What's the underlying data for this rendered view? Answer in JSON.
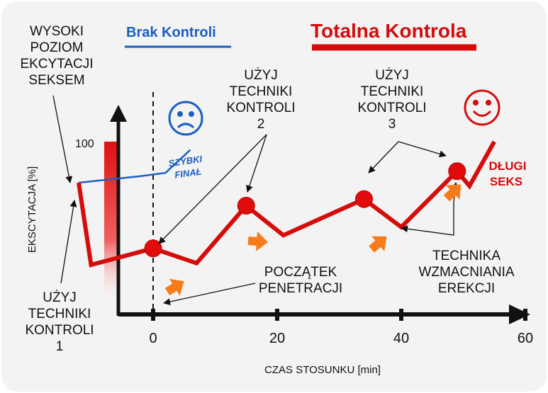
{
  "legend": {
    "brak_kontroli": "Brak Kontroli",
    "totalna_kontrola": "Totalna Kontrola",
    "blue_color": "#1a5fc4",
    "red_color": "#d40c0c"
  },
  "labels": {
    "top_left": [
      "WYSOKI",
      "POZIOM",
      "EKCYTACJI",
      "SEKSEM"
    ],
    "technique_1": [
      "UŻYJ",
      "TECHNIKI",
      "KONTROLI",
      "1"
    ],
    "technique_2": [
      "UŻYJ",
      "TECHNIKI",
      "KONTROLI",
      "2"
    ],
    "technique_3": [
      "UŻYJ",
      "TECHNIKI",
      "KONTROLI",
      "3"
    ],
    "penetration": [
      "POCZĄTEK",
      "PENETRACJI"
    ],
    "erection": [
      "TECHNIKA",
      "WZMACNIANIA",
      "EREKCJI"
    ],
    "szybki_final": [
      "SZYBKI",
      "FINAŁ"
    ],
    "dlugi_seks": [
      "DŁUGI",
      "SEKS"
    ]
  },
  "icons": {
    "sad": "sad-face-icon",
    "happy": "happy-face-icon",
    "arrows": "orange-arrow-icon"
  },
  "chart_data": {
    "type": "line",
    "xlabel": "CZAS STOSUNKU [min]",
    "ylabel": "EKSCYTACJA [%]",
    "x_ticks": [
      "0",
      "20",
      "40",
      "60"
    ],
    "y_ticks": [
      "100"
    ],
    "series": [
      {
        "name": "Brak Kontroli",
        "x": [
          -12,
          -2,
          2,
          6
        ],
        "y": [
          75,
          79,
          81,
          95
        ]
      },
      {
        "name": "Totalna Kontrola",
        "x": [
          -12,
          -10,
          0,
          7,
          15,
          21,
          34,
          40,
          49,
          51,
          55
        ],
        "y": [
          75,
          25,
          35,
          26,
          61,
          43,
          65,
          48,
          82,
          73,
          100
        ]
      }
    ],
    "markers_x": [
      0,
      15,
      34,
      49
    ]
  }
}
